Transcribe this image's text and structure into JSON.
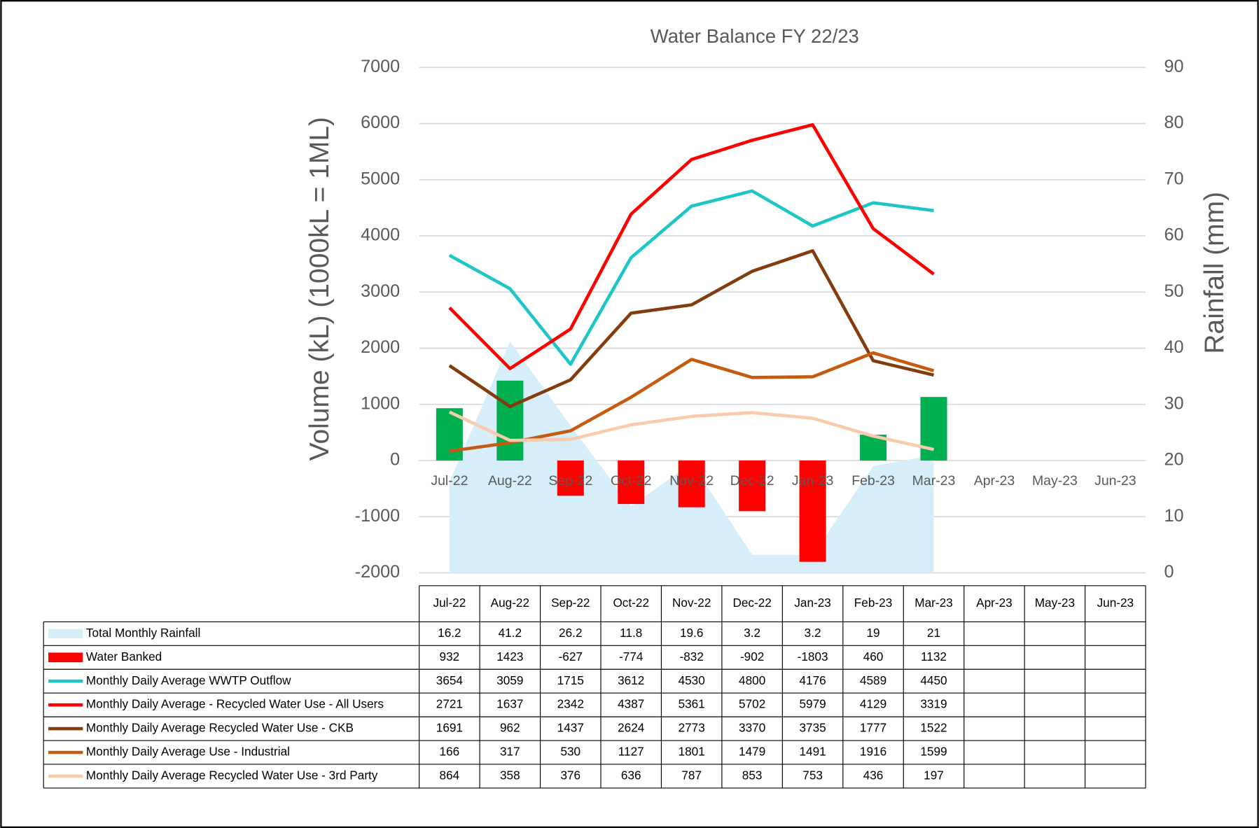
{
  "chart_data": {
    "type": "combo",
    "title": "Water Balance FY 22/23",
    "y_label": "Volume (kL) (1000kL = 1ML)",
    "y2_label": "Rainfall (mm)",
    "categories": [
      "Jul-22",
      "Aug-22",
      "Sep-22",
      "Oct-22",
      "Nov-22",
      "Dec-22",
      "Jan-23",
      "Feb-23",
      "Mar-23",
      "Apr-23",
      "May-23",
      "Jun-23"
    ],
    "ylim": [
      -2000,
      7000
    ],
    "yticks": [
      -2000,
      -1000,
      0,
      1000,
      2000,
      3000,
      4000,
      5000,
      6000,
      7000
    ],
    "y2lim": [
      0,
      90
    ],
    "y2ticks": [
      0,
      10,
      20,
      30,
      40,
      50,
      60,
      70,
      80,
      90
    ],
    "grid": true,
    "data_table": true,
    "series": [
      {
        "name": "Total Monthly Rainfall",
        "type": "area",
        "axis": "y2",
        "color": "#d5eef9",
        "values": [
          16.2,
          41.2,
          26.2,
          11.8,
          19.6,
          3.2,
          3.2,
          19,
          21,
          null,
          null,
          null
        ]
      },
      {
        "name": "Water Banked",
        "type": "bar",
        "color": "#ff0000",
        "positive_color": "#00b050",
        "values": [
          932,
          1423,
          -627,
          -774,
          -832,
          -902,
          -1803,
          460,
          1132,
          null,
          null,
          null
        ]
      },
      {
        "name": "Monthly Daily Average WWTP Outflow",
        "type": "line",
        "color": "#1cc6c6",
        "values": [
          3654,
          3059,
          1715,
          3612,
          4530,
          4800,
          4176,
          4589,
          4450,
          null,
          null,
          null
        ]
      },
      {
        "name": "Monthly Daily Average - Recycled Water Use - All Users",
        "type": "line",
        "color": "#ff0000",
        "values": [
          2721,
          1637,
          2342,
          4387,
          5361,
          5702,
          5979,
          4129,
          3319,
          null,
          null,
          null
        ]
      },
      {
        "name": "Monthly Daily Average Recycled Water Use - CKB",
        "type": "line",
        "color": "#843c0c",
        "values": [
          1691,
          962,
          1437,
          2624,
          2773,
          3370,
          3735,
          1777,
          1522,
          null,
          null,
          null
        ]
      },
      {
        "name": "Monthly Daily Average Use - Industrial",
        "type": "line",
        "color": "#c55a11",
        "values": [
          166,
          317,
          530,
          1127,
          1801,
          1479,
          1491,
          1916,
          1599,
          null,
          null,
          null
        ]
      },
      {
        "name": "Monthly Daily Average Recycled Water Use - 3rd Party",
        "type": "line",
        "color": "#f8cbad",
        "values": [
          864,
          358,
          376,
          636,
          787,
          853,
          753,
          436,
          197,
          null,
          null,
          null
        ]
      }
    ]
  }
}
